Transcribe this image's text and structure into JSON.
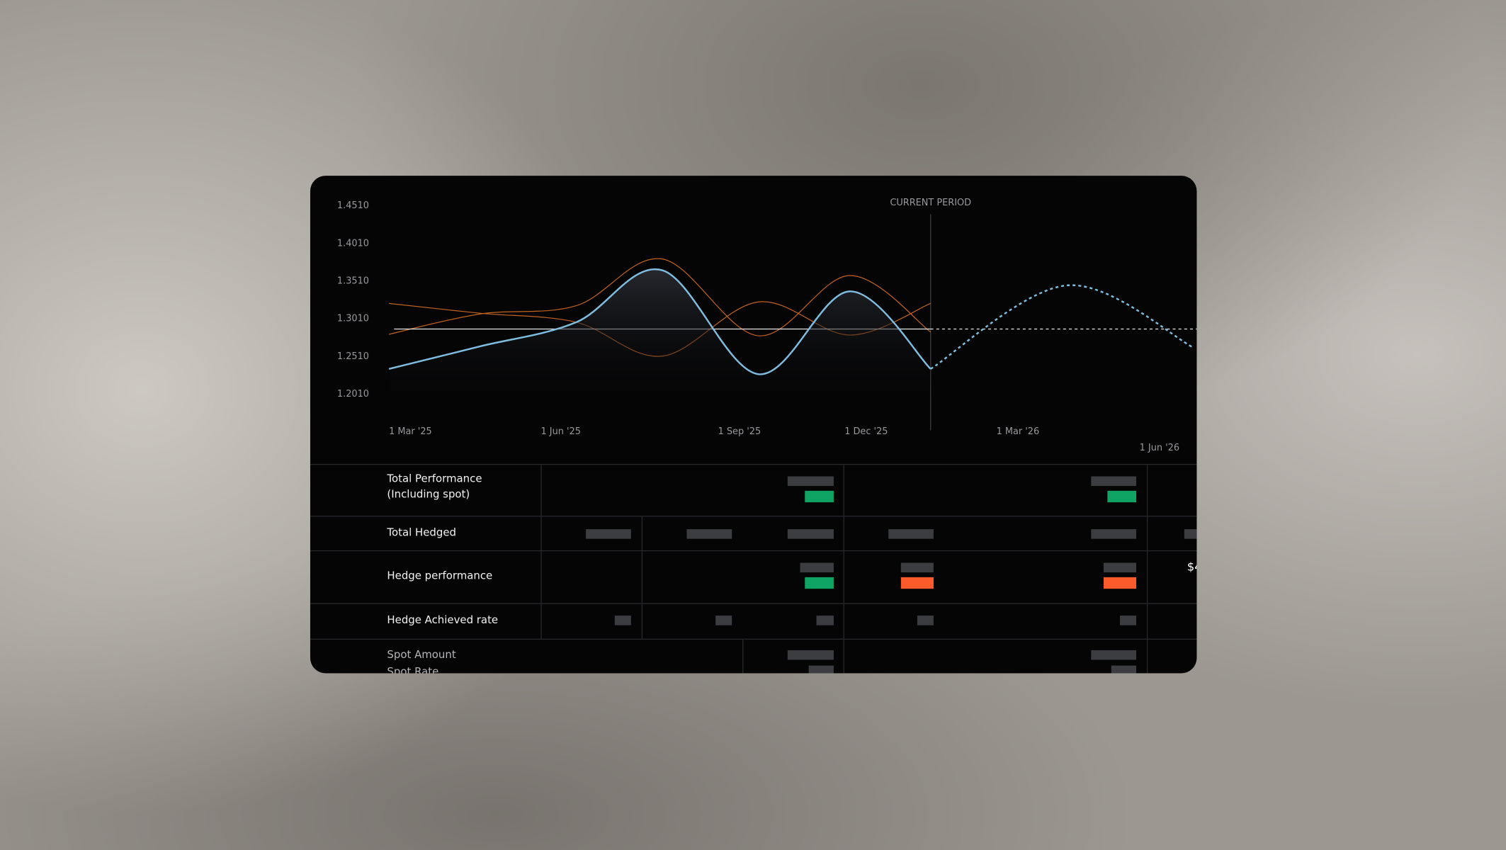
{
  "chart_data": {
    "type": "line",
    "annotation": "CURRENT PERIOD",
    "annotation_x": 10.7,
    "xlim": [
      0,
      16
    ],
    "ylim": [
      1.201,
      1.451
    ],
    "xticks": [
      {
        "value": 0,
        "label": "1 Mar '25"
      },
      {
        "value": 3,
        "label": "1 Jun '25"
      },
      {
        "value": 6.5,
        "label": "1 Sep '25"
      },
      {
        "value": 9,
        "label": "1 Dec '25"
      },
      {
        "value": 12,
        "label": "1 Mar '26"
      },
      {
        "value": 15,
        "label": "1 Jun '26"
      }
    ],
    "yticks": [
      {
        "value": 1.451,
        "label": "1.4510"
      },
      {
        "value": 1.401,
        "label": "1.4010"
      },
      {
        "value": 1.351,
        "label": "1.3510"
      },
      {
        "value": 1.301,
        "label": "1.3010"
      },
      {
        "value": 1.251,
        "label": "1.2510"
      },
      {
        "value": 1.201,
        "label": "1.2010"
      }
    ],
    "series": [
      {
        "color": "#c2631f",
        "x": [
          0,
          1.8,
          3.7,
          5.4,
          7.3,
          9.1,
          10.7
        ],
        "values": [
          1.321,
          1.308,
          1.296,
          1.251,
          1.323,
          1.279,
          1.321
        ]
      },
      {
        "color": "#c2631f",
        "x": [
          0,
          1.8,
          3.7,
          5.4,
          7.3,
          9.1,
          10.7
        ],
        "values": [
          1.28,
          1.307,
          1.318,
          1.38,
          1.278,
          1.358,
          1.283
        ]
      },
      {
        "color": "#e6e6e6",
        "x": [
          0.1,
          10.7
        ],
        "values": [
          1.287,
          1.287
        ]
      },
      {
        "color": "#e6e6e6",
        "dashed": true,
        "x": [
          10.7,
          16
        ],
        "values": [
          1.287,
          1.287
        ]
      },
      {
        "color": "#7fbde0",
        "area": true,
        "x": [
          0,
          1.8,
          3.7,
          5.4,
          7.3,
          9.1,
          10.7
        ],
        "values": [
          1.234,
          1.264,
          1.296,
          1.365,
          1.227,
          1.337,
          1.234
        ]
      },
      {
        "color": "#7fbde0",
        "dashed": true,
        "x": [
          10.7,
          13.4,
          15.9
        ],
        "values": [
          1.234,
          1.345,
          1.262
        ]
      }
    ]
  },
  "table": {
    "rows": [
      {
        "label": "Total Performance (Including spot)"
      },
      {
        "label": "Total Hedged"
      },
      {
        "label": "Hedge performance",
        "cell": "$4"
      },
      {
        "label": "Hedge Achieved rate"
      },
      {
        "label": "Spot Amount",
        "label2": "Spot Rate"
      }
    ]
  }
}
